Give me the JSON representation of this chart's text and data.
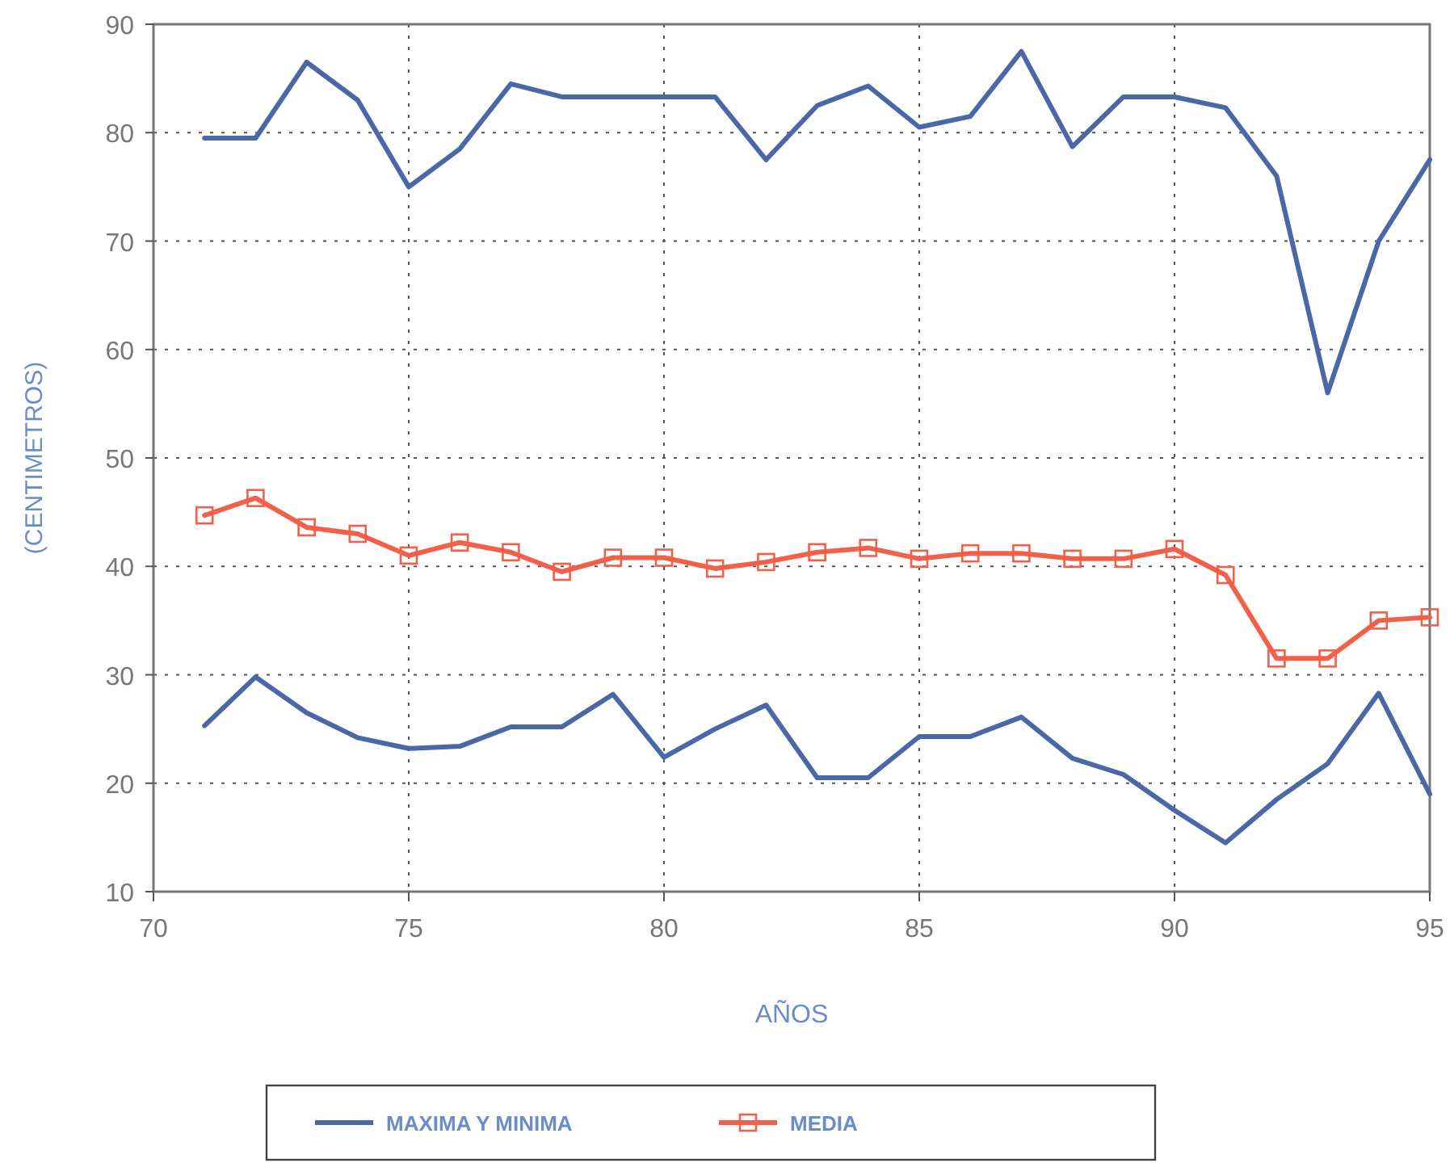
{
  "chart_data": {
    "type": "line",
    "xlabel": "AÑOS",
    "ylabel": "(CENTIMETROS)",
    "x": [
      71,
      72,
      73,
      74,
      75,
      76,
      77,
      78,
      79,
      80,
      81,
      82,
      83,
      84,
      85,
      86,
      87,
      88,
      89,
      90,
      91,
      92,
      93,
      94,
      95
    ],
    "series": [
      {
        "name": "MAXIMA Y MINIMA",
        "color": "#4a68a6",
        "marker": "none",
        "values": [
          79.5,
          79.5,
          86.5,
          83,
          75,
          78.5,
          84.5,
          83.3,
          83.3,
          83.3,
          83.3,
          77.5,
          82.5,
          84.3,
          80.5,
          81.5,
          87.5,
          78.7,
          83.3,
          83.3,
          82.3,
          76,
          56,
          70,
          77.5
        ]
      },
      {
        "color": "#4a68a6",
        "marker": "none",
        "values": [
          25.3,
          29.8,
          26.5,
          24.2,
          23.2,
          23.4,
          25.2,
          25.2,
          28.2,
          22.4,
          25,
          27.2,
          20.5,
          20.5,
          24.3,
          24.3,
          26.1,
          22.3,
          20.8,
          17.5,
          14.5,
          18.5,
          21.8,
          28.3,
          19
        ]
      },
      {
        "name": "MEDIA",
        "color": "#f2604a",
        "marker": "square",
        "values": [
          44.7,
          46.3,
          43.6,
          43,
          41,
          42.2,
          41.3,
          39.5,
          40.8,
          40.8,
          39.8,
          40.4,
          41.3,
          41.7,
          40.7,
          41.2,
          41.2,
          40.7,
          40.7,
          41.6,
          39.2,
          31.5,
          31.5,
          35,
          35.3
        ]
      }
    ],
    "xlim": [
      70,
      95
    ],
    "xticks": [
      70,
      75,
      80,
      85,
      90,
      95
    ],
    "ylim": [
      10,
      90
    ],
    "yticks": [
      10,
      20,
      30,
      40,
      50,
      60,
      70,
      80,
      90
    ],
    "grid": true,
    "line_style": "solid",
    "legend": "bottom"
  }
}
